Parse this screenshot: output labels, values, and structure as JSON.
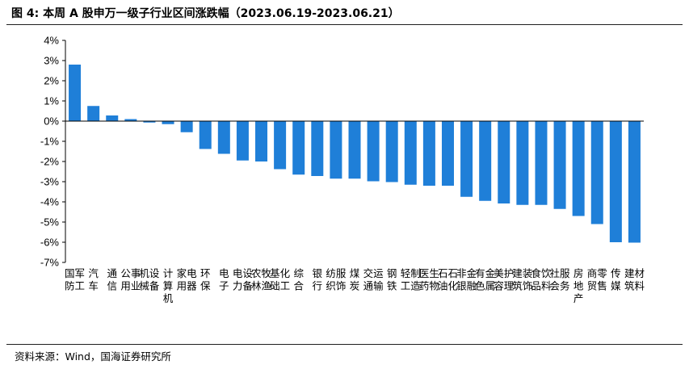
{
  "header": {
    "title": "图 4:  本周 A 股申万一级子行业区间涨跌幅（2023.06.19-2023.06.21）"
  },
  "footer": {
    "source": "资料来源：Wind，国海证券研究所"
  },
  "chart_data": {
    "type": "bar",
    "title": "本周 A 股申万一级子行业区间涨跌幅（2023.06.19-2023.06.21）",
    "xlabel": "",
    "ylabel": "",
    "ylim": [
      -7,
      4
    ],
    "yticks": [
      4,
      3,
      2,
      1,
      0,
      -1,
      -2,
      -3,
      -4,
      -5,
      -6,
      -7
    ],
    "ytick_labels": [
      "4%",
      "3%",
      "2%",
      "1%",
      "0%",
      "-1%",
      "-2%",
      "-3%",
      "-4%",
      "-5%",
      "-6%",
      "-7%"
    ],
    "unit": "%",
    "grid": false,
    "bar_color": "#1f7fd8",
    "categories": [
      "国防军工",
      "汽车",
      "通信",
      "公用事业",
      "机械设备",
      "计算机",
      "家用电器",
      "环保",
      "电子",
      "电力设备",
      "农林牧渔",
      "基础化工",
      "综合",
      "银行",
      "纺织服饰",
      "煤炭",
      "交通运输",
      "钢铁",
      "轻工制造",
      "医药生物",
      "石油石化",
      "非银金融",
      "有色金属",
      "美容护理",
      "建筑装饰",
      "食品饮料",
      "社会服务",
      "房地产",
      "商贸零售",
      "传媒",
      "建筑材料"
    ],
    "values": [
      2.8,
      0.75,
      0.28,
      0.1,
      -0.07,
      -0.15,
      -0.55,
      -1.38,
      -1.62,
      -1.95,
      -2.0,
      -2.38,
      -2.65,
      -2.72,
      -2.85,
      -2.85,
      -2.98,
      -3.02,
      -3.15,
      -3.2,
      -3.2,
      -3.75,
      -3.95,
      -4.08,
      -4.15,
      -4.15,
      -4.35,
      -4.7,
      -5.1,
      -6.0,
      -6.02
    ]
  }
}
